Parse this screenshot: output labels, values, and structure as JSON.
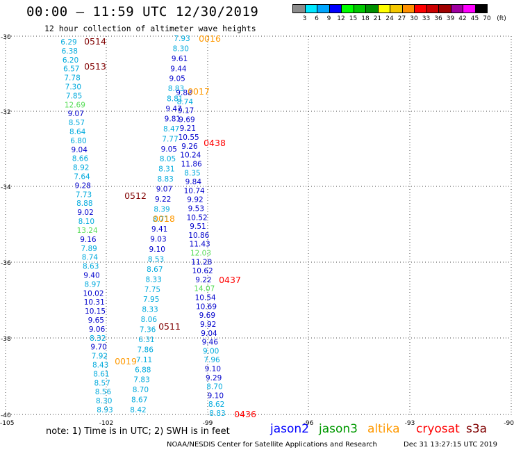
{
  "header": {
    "title": "00:00 – 11:59 UTC 12/30/2019",
    "subtitle": "12 hour collection of altimeter wave heights"
  },
  "color_scale": {
    "unit": "(ft)",
    "bins": [
      {
        "label": "3",
        "color": "#8c8c8c"
      },
      {
        "label": "6",
        "color": "#00e8ff"
      },
      {
        "label": "9",
        "color": "#00a6ff"
      },
      {
        "label": "12",
        "color": "#0000ff"
      },
      {
        "label": "15",
        "color": "#00ff00"
      },
      {
        "label": "18",
        "color": "#00c800"
      },
      {
        "label": "21",
        "color": "#009000"
      },
      {
        "label": "24",
        "color": "#ffff00"
      },
      {
        "label": "27",
        "color": "#f5c800"
      },
      {
        "label": "30",
        "color": "#ff9000"
      },
      {
        "label": "33",
        "color": "#ff0000"
      },
      {
        "label": "36",
        "color": "#cc0000"
      },
      {
        "label": "39",
        "color": "#a00000"
      },
      {
        "label": "42",
        "color": "#a000a0"
      },
      {
        "label": "45",
        "color": "#ff00ff"
      },
      {
        "label": "70",
        "color": "#000000"
      }
    ]
  },
  "axes": {
    "lat_ticks": [
      "-30",
      "-32",
      "-34",
      "-36",
      "-38",
      "-40"
    ],
    "lon_ticks": [
      "-105",
      "-102",
      "-99",
      "-96",
      "-93",
      "-90"
    ]
  },
  "track_time_labels": [
    {
      "text": "0514",
      "color": "#800000"
    },
    {
      "text": "0513",
      "color": "#800000"
    },
    {
      "text": "0512",
      "color": "#800000"
    },
    {
      "text": "0511",
      "color": "#800000"
    },
    {
      "text": "0016",
      "color": "#ff9900"
    },
    {
      "text": "0017",
      "color": "#ff9900"
    },
    {
      "text": "0018",
      "color": "#ff9900"
    },
    {
      "text": "0019",
      "color": "#ff9900"
    },
    {
      "text": "0438",
      "color": "#ff0000"
    },
    {
      "text": "0437",
      "color": "#ff0000"
    },
    {
      "text": "0436",
      "color": "#ff0000"
    }
  ],
  "wave_values": {
    "track_left": [
      {
        "text": "6.29",
        "color": "#00aadd"
      },
      {
        "text": "6.38",
        "color": "#00aadd"
      },
      {
        "text": "6.20",
        "color": "#00aadd"
      },
      {
        "text": "6.57",
        "color": "#00aadd"
      },
      {
        "text": "7.78",
        "color": "#00aadd"
      },
      {
        "text": "7.30",
        "color": "#00aadd"
      },
      {
        "text": "7.85",
        "color": "#00aadd"
      },
      {
        "text": "12.69",
        "color": "#55dd55"
      },
      {
        "text": "9.07",
        "color": "#0000cc"
      },
      {
        "text": "8.57",
        "color": "#00aadd"
      },
      {
        "text": "8.64",
        "color": "#00aadd"
      },
      {
        "text": "6.80",
        "color": "#00aadd"
      },
      {
        "text": "9.04",
        "color": "#0000cc"
      },
      {
        "text": "8.66",
        "color": "#00aadd"
      },
      {
        "text": "8.92",
        "color": "#00aadd"
      },
      {
        "text": "7.64",
        "color": "#00aadd"
      },
      {
        "text": "9.28",
        "color": "#0000cc"
      },
      {
        "text": "7.73",
        "color": "#00aadd"
      },
      {
        "text": "8.88",
        "color": "#00aadd"
      },
      {
        "text": "9.02",
        "color": "#0000cc"
      },
      {
        "text": "8.10",
        "color": "#00aadd"
      },
      {
        "text": "13.24",
        "color": "#55dd55"
      },
      {
        "text": "9.16",
        "color": "#0000cc"
      },
      {
        "text": "7.89",
        "color": "#00aadd"
      },
      {
        "text": "8.74",
        "color": "#00aadd"
      },
      {
        "text": "8.63",
        "color": "#00aadd"
      },
      {
        "text": "9.40",
        "color": "#0000cc"
      },
      {
        "text": "8.97",
        "color": "#00aadd"
      },
      {
        "text": "10.02",
        "color": "#0000cc"
      },
      {
        "text": "10.31",
        "color": "#0000cc"
      },
      {
        "text": "10.15",
        "color": "#0000cc"
      },
      {
        "text": "9.65",
        "color": "#0000cc"
      },
      {
        "text": "9.06",
        "color": "#0000cc"
      },
      {
        "text": "8.32",
        "color": "#00aadd"
      },
      {
        "text": "9.70",
        "color": "#0000cc"
      },
      {
        "text": "7.92",
        "color": "#00aadd"
      },
      {
        "text": "8.43",
        "color": "#00aadd"
      },
      {
        "text": "8.61",
        "color": "#00aadd"
      },
      {
        "text": "8.57",
        "color": "#00aadd"
      },
      {
        "text": "8.56",
        "color": "#00aadd"
      },
      {
        "text": "8.30",
        "color": "#00aadd"
      },
      {
        "text": "8.93",
        "color": "#00aadd"
      }
    ],
    "track_mid": [
      {
        "text": "7.93",
        "color": "#00aadd"
      },
      {
        "text": "8.30",
        "color": "#00aadd"
      },
      {
        "text": "9.61",
        "color": "#0000cc"
      },
      {
        "text": "9.44",
        "color": "#0000cc"
      },
      {
        "text": "9.05",
        "color": "#0000cc"
      },
      {
        "text": "8.83",
        "color": "#00aadd"
      },
      {
        "text": "8.81",
        "color": "#00aadd"
      },
      {
        "text": "9.47",
        "color": "#0000cc"
      },
      {
        "text": "9.81",
        "color": "#0000cc"
      },
      {
        "text": "8.47",
        "color": "#00aadd"
      },
      {
        "text": "7.77",
        "color": "#00aadd"
      },
      {
        "text": "9.05",
        "color": "#0000cc"
      },
      {
        "text": "8.05",
        "color": "#00aadd"
      },
      {
        "text": "8.31",
        "color": "#00aadd"
      },
      {
        "text": "8.83",
        "color": "#00aadd"
      },
      {
        "text": "9.07",
        "color": "#0000cc"
      },
      {
        "text": "9.22",
        "color": "#0000cc"
      },
      {
        "text": "8.39",
        "color": "#00aadd"
      },
      {
        "text": "8.71",
        "color": "#00aadd"
      },
      {
        "text": "9.41",
        "color": "#0000cc"
      },
      {
        "text": "9.03",
        "color": "#0000cc"
      },
      {
        "text": "9.10",
        "color": "#0000cc"
      },
      {
        "text": "8.53",
        "color": "#00aadd"
      },
      {
        "text": "8.67",
        "color": "#00aadd"
      },
      {
        "text": "8.33",
        "color": "#00aadd"
      },
      {
        "text": "7.75",
        "color": "#00aadd"
      },
      {
        "text": "7.95",
        "color": "#00aadd"
      },
      {
        "text": "8.33",
        "color": "#00aadd"
      },
      {
        "text": "8.06",
        "color": "#00aadd"
      },
      {
        "text": "7.36",
        "color": "#00aadd"
      },
      {
        "text": "6.31",
        "color": "#00aadd"
      },
      {
        "text": "7.86",
        "color": "#00aadd"
      },
      {
        "text": "7.11",
        "color": "#00aadd"
      },
      {
        "text": "6.88",
        "color": "#00aadd"
      },
      {
        "text": "7.83",
        "color": "#00aadd"
      },
      {
        "text": "8.70",
        "color": "#00aadd"
      },
      {
        "text": "8.67",
        "color": "#00aadd"
      },
      {
        "text": "8.42",
        "color": "#00aadd"
      }
    ],
    "track_right": [
      {
        "text": "9.88",
        "color": "#0000cc"
      },
      {
        "text": "8.74",
        "color": "#00aadd"
      },
      {
        "text": "9.17",
        "color": "#0000cc"
      },
      {
        "text": "9.69",
        "color": "#0000cc"
      },
      {
        "text": "9.21",
        "color": "#0000cc"
      },
      {
        "text": "10.55",
        "color": "#0000cc"
      },
      {
        "text": "9.26",
        "color": "#0000cc"
      },
      {
        "text": "10.24",
        "color": "#0000cc"
      },
      {
        "text": "11.86",
        "color": "#0000cc"
      },
      {
        "text": "8.35",
        "color": "#00aadd"
      },
      {
        "text": "9.84",
        "color": "#0000cc"
      },
      {
        "text": "10.74",
        "color": "#0000cc"
      },
      {
        "text": "9.92",
        "color": "#0000cc"
      },
      {
        "text": "9.53",
        "color": "#0000cc"
      },
      {
        "text": "10.52",
        "color": "#0000cc"
      },
      {
        "text": "9.51",
        "color": "#0000cc"
      },
      {
        "text": "10.86",
        "color": "#0000cc"
      },
      {
        "text": "11.43",
        "color": "#0000cc"
      },
      {
        "text": "12.03",
        "color": "#55dd55"
      },
      {
        "text": "11.28",
        "color": "#0000cc"
      },
      {
        "text": "10.62",
        "color": "#0000cc"
      },
      {
        "text": "9.22",
        "color": "#0000cc"
      },
      {
        "text": "14.07",
        "color": "#55dd55"
      },
      {
        "text": "10.54",
        "color": "#0000cc"
      },
      {
        "text": "10.69",
        "color": "#0000cc"
      },
      {
        "text": "9.69",
        "color": "#0000cc"
      },
      {
        "text": "9.92",
        "color": "#0000cc"
      },
      {
        "text": "9.04",
        "color": "#0000cc"
      },
      {
        "text": "9.46",
        "color": "#0000cc"
      },
      {
        "text": "9.00",
        "color": "#00aadd"
      },
      {
        "text": "7.96",
        "color": "#00aadd"
      },
      {
        "text": "9.10",
        "color": "#0000cc"
      },
      {
        "text": "9.29",
        "color": "#0000cc"
      },
      {
        "text": "8.70",
        "color": "#00aadd"
      },
      {
        "text": "9.10",
        "color": "#0000cc"
      },
      {
        "text": "8.62",
        "color": "#00aadd"
      },
      {
        "text": "8.83",
        "color": "#00aadd"
      }
    ]
  },
  "note": "note: 1) Time is in UTC; 2) SWH is in feet",
  "satellites": [
    {
      "name": "jason2",
      "color": "#0000ff"
    },
    {
      "name": "jason3",
      "color": "#009900"
    },
    {
      "name": "altika",
      "color": "#ff9900"
    },
    {
      "name": "cryosat",
      "color": "#ff0000"
    },
    {
      "name": "s3a",
      "color": "#800000"
    }
  ],
  "footer": {
    "credit": "NOAA/NESDIS Center for Satellite Applications and Research",
    "timestamp": "Dec 31 13:27:15 UTC 2019"
  }
}
